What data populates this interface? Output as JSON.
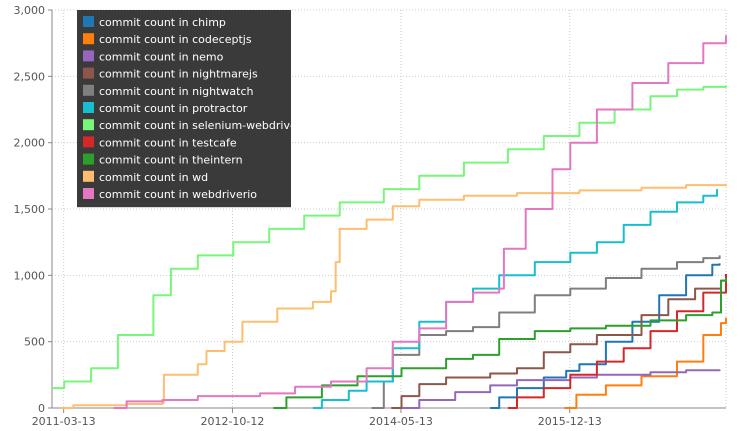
{
  "chart_data": {
    "type": "line",
    "title": "",
    "xlabel": "",
    "ylabel": "",
    "grid": true,
    "legend_position": "top-left",
    "x_ticks": [
      "2011-03-13",
      "2012-10-12",
      "2014-05-13",
      "2015-12-13"
    ],
    "y_ticks": [
      "0",
      "500",
      "1,000",
      "1,500",
      "2,000",
      "2,500",
      "3,000"
    ],
    "xlim": [
      "2011-02-01",
      "2017-06-01"
    ],
    "ylim": [
      0,
      3000
    ],
    "series": [
      {
        "name": "commit count in chimp",
        "color": "#1f77b4",
        "points": [
          [
            "2015-03-15",
            0
          ],
          [
            "2015-04-15",
            80
          ],
          [
            "2015-06-15",
            150
          ],
          [
            "2015-09-15",
            230
          ],
          [
            "2015-12-01",
            280
          ],
          [
            "2016-01-15",
            330
          ],
          [
            "2016-04-15",
            500
          ],
          [
            "2016-07-15",
            650
          ],
          [
            "2016-10-15",
            850
          ],
          [
            "2017-01-15",
            1000
          ],
          [
            "2017-04-15",
            1080
          ],
          [
            "2017-05-10",
            1090
          ]
        ]
      },
      {
        "name": "commit count in codeceptjs",
        "color": "#ff7f0e",
        "points": [
          [
            "2015-11-25",
            0
          ],
          [
            "2016-01-05",
            100
          ],
          [
            "2016-04-15",
            170
          ],
          [
            "2016-08-15",
            240
          ],
          [
            "2016-12-15",
            350
          ],
          [
            "2017-03-15",
            550
          ],
          [
            "2017-05-15",
            640
          ],
          [
            "2017-06-01",
            680
          ]
        ]
      },
      {
        "name": "commit count in nemo",
        "color": "#9467bd",
        "points": [
          [
            "2014-05-10",
            0
          ],
          [
            "2014-07-15",
            60
          ],
          [
            "2014-11-15",
            120
          ],
          [
            "2015-03-15",
            170
          ],
          [
            "2015-06-15",
            210
          ],
          [
            "2015-12-15",
            230
          ],
          [
            "2016-03-15",
            250
          ],
          [
            "2016-09-15",
            270
          ],
          [
            "2017-01-15",
            285
          ],
          [
            "2017-05-10",
            290
          ]
        ]
      },
      {
        "name": "commit count in nightmarejs",
        "color": "#8c564b",
        "points": [
          [
            "2014-04-10",
            0
          ],
          [
            "2014-05-15",
            90
          ],
          [
            "2014-07-15",
            180
          ],
          [
            "2014-10-15",
            230
          ],
          [
            "2015-03-15",
            260
          ],
          [
            "2015-06-15",
            300
          ],
          [
            "2015-09-15",
            420
          ],
          [
            "2015-12-15",
            480
          ],
          [
            "2016-03-15",
            550
          ],
          [
            "2016-08-15",
            700
          ],
          [
            "2016-11-15",
            820
          ],
          [
            "2017-02-15",
            900
          ],
          [
            "2017-05-15",
            960
          ],
          [
            "2017-06-01",
            970
          ]
        ]
      },
      {
        "name": "commit count in nightwatch",
        "color": "#7f7f7f",
        "points": [
          [
            "2014-02-01",
            0
          ],
          [
            "2014-03-15",
            200
          ],
          [
            "2014-04-15",
            400
          ],
          [
            "2014-07-15",
            550
          ],
          [
            "2014-10-15",
            580
          ],
          [
            "2015-01-15",
            610
          ],
          [
            "2015-04-15",
            720
          ],
          [
            "2015-08-15",
            850
          ],
          [
            "2015-12-15",
            900
          ],
          [
            "2016-04-15",
            980
          ],
          [
            "2016-08-15",
            1050
          ],
          [
            "2016-12-15",
            1100
          ],
          [
            "2017-03-15",
            1130
          ],
          [
            "2017-05-10",
            1150
          ]
        ]
      },
      {
        "name": "commit count in protractor",
        "color": "#17becf",
        "points": [
          [
            "2013-07-15",
            0
          ],
          [
            "2013-08-15",
            60
          ],
          [
            "2013-11-15",
            130
          ],
          [
            "2014-01-15",
            200
          ],
          [
            "2014-04-15",
            450
          ],
          [
            "2014-07-15",
            650
          ],
          [
            "2014-10-15",
            800
          ],
          [
            "2015-01-15",
            900
          ],
          [
            "2015-04-15",
            1000
          ],
          [
            "2015-08-15",
            1100
          ],
          [
            "2015-12-15",
            1170
          ],
          [
            "2016-03-15",
            1250
          ],
          [
            "2016-06-15",
            1380
          ],
          [
            "2016-09-15",
            1480
          ],
          [
            "2016-12-15",
            1550
          ],
          [
            "2017-03-15",
            1600
          ],
          [
            "2017-05-01",
            1650
          ]
        ]
      },
      {
        "name": "commit count in selenium-webdriver",
        "color": "#77f67a",
        "points": [
          [
            "2011-02-01",
            150
          ],
          [
            "2011-03-15",
            200
          ],
          [
            "2011-06-15",
            300
          ],
          [
            "2011-09-15",
            550
          ],
          [
            "2012-01-15",
            850
          ],
          [
            "2012-03-15",
            1050
          ],
          [
            "2012-06-15",
            1150
          ],
          [
            "2012-10-15",
            1250
          ],
          [
            "2013-02-15",
            1350
          ],
          [
            "2013-06-15",
            1450
          ],
          [
            "2013-10-15",
            1550
          ],
          [
            "2014-03-15",
            1650
          ],
          [
            "2014-07-15",
            1750
          ],
          [
            "2014-12-15",
            1850
          ],
          [
            "2015-05-15",
            1950
          ],
          [
            "2015-09-15",
            2050
          ],
          [
            "2016-01-15",
            2150
          ],
          [
            "2016-05-15",
            2250
          ],
          [
            "2016-09-15",
            2350
          ],
          [
            "2016-12-15",
            2400
          ],
          [
            "2017-03-15",
            2420
          ],
          [
            "2017-06-01",
            2430
          ]
        ]
      },
      {
        "name": "commit count in testcafe",
        "color": "#d62728",
        "points": [
          [
            "2015-05-15",
            0
          ],
          [
            "2015-06-15",
            80
          ],
          [
            "2015-09-15",
            150
          ],
          [
            "2015-12-15",
            250
          ],
          [
            "2016-03-15",
            350
          ],
          [
            "2016-06-15",
            450
          ],
          [
            "2016-09-15",
            580
          ],
          [
            "2016-12-15",
            730
          ],
          [
            "2017-03-15",
            870
          ],
          [
            "2017-06-01",
            1010
          ]
        ]
      },
      {
        "name": "commit count in theintern",
        "color": "#2ca02c",
        "points": [
          [
            "2013-03-01",
            0
          ],
          [
            "2013-04-15",
            80
          ],
          [
            "2013-08-15",
            170
          ],
          [
            "2013-12-15",
            240
          ],
          [
            "2014-05-15",
            300
          ],
          [
            "2014-10-15",
            370
          ],
          [
            "2015-01-15",
            400
          ],
          [
            "2015-04-15",
            520
          ],
          [
            "2015-08-15",
            580
          ],
          [
            "2015-12-15",
            600
          ],
          [
            "2016-04-15",
            620
          ],
          [
            "2016-09-15",
            660
          ],
          [
            "2017-01-15",
            700
          ],
          [
            "2017-04-15",
            720
          ],
          [
            "2017-05-15",
            960
          ],
          [
            "2017-06-01",
            980
          ]
        ]
      },
      {
        "name": "commit count in wd",
        "color": "#fdbf6f",
        "points": [
          [
            "2011-03-01",
            0
          ],
          [
            "2011-04-15",
            20
          ],
          [
            "2011-10-15",
            30
          ],
          [
            "2012-02-15",
            40
          ],
          [
            "2012-02-20",
            250
          ],
          [
            "2012-06-15",
            330
          ],
          [
            "2012-07-15",
            430
          ],
          [
            "2012-09-15",
            500
          ],
          [
            "2012-11-15",
            650
          ],
          [
            "2013-03-15",
            750
          ],
          [
            "2013-07-15",
            800
          ],
          [
            "2013-09-15",
            880
          ],
          [
            "2013-10-01",
            1100
          ],
          [
            "2013-10-15",
            1350
          ],
          [
            "2014-01-15",
            1420
          ],
          [
            "2014-04-15",
            1520
          ],
          [
            "2014-07-15",
            1570
          ],
          [
            "2014-12-15",
            1600
          ],
          [
            "2015-06-15",
            1620
          ],
          [
            "2016-01-15",
            1640
          ],
          [
            "2016-08-15",
            1660
          ],
          [
            "2017-01-15",
            1680
          ],
          [
            "2017-06-01",
            1690
          ]
        ]
      },
      {
        "name": "commit count in webdriverio",
        "color": "#e377c2",
        "points": [
          [
            "2011-09-01",
            0
          ],
          [
            "2011-10-15",
            50
          ],
          [
            "2012-02-15",
            60
          ],
          [
            "2012-06-15",
            90
          ],
          [
            "2013-01-15",
            110
          ],
          [
            "2013-05-15",
            160
          ],
          [
            "2013-09-15",
            200
          ],
          [
            "2014-01-15",
            300
          ],
          [
            "2014-04-15",
            500
          ],
          [
            "2014-07-15",
            600
          ],
          [
            "2014-10-15",
            800
          ],
          [
            "2015-01-15",
            870
          ],
          [
            "2015-04-15",
            900
          ],
          [
            "2015-05-01",
            1200
          ],
          [
            "2015-07-15",
            1500
          ],
          [
            "2015-10-15",
            1800
          ],
          [
            "2015-12-15",
            2000
          ],
          [
            "2016-03-15",
            2250
          ],
          [
            "2016-07-15",
            2450
          ],
          [
            "2016-11-15",
            2600
          ],
          [
            "2017-03-15",
            2750
          ],
          [
            "2017-06-01",
            2810
          ]
        ]
      }
    ]
  }
}
